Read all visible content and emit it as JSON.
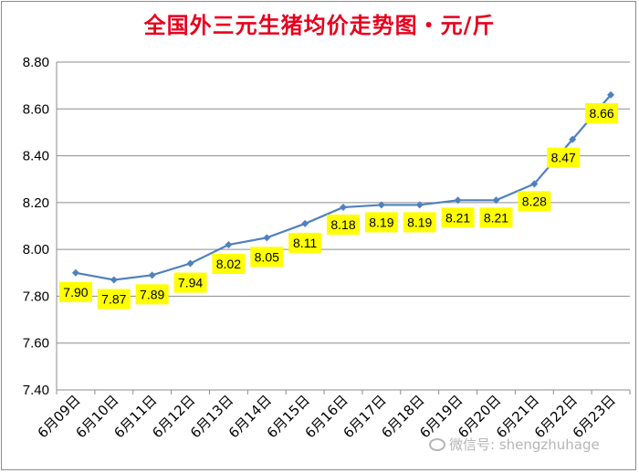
{
  "chart_data": {
    "type": "line",
    "title": "全国外三元生猪均价走势图・元/斤",
    "categories": [
      "6月09日",
      "6月10日",
      "6月11日",
      "6月12日",
      "6月13日",
      "6月14日",
      "6月15日",
      "6月16日",
      "6月17日",
      "6月18日",
      "6月19日",
      "6月20日",
      "6月21日",
      "6月22日",
      "6月23日"
    ],
    "values": [
      7.9,
      7.87,
      7.89,
      7.94,
      8.02,
      8.05,
      8.11,
      8.18,
      8.19,
      8.19,
      8.21,
      8.21,
      8.28,
      8.47,
      8.66
    ],
    "data_labels": [
      "7.90",
      "7.87",
      "7.89",
      "7.94",
      "8.02",
      "8.05",
      "8.11",
      "8.18",
      "8.19",
      "8.19",
      "8.21",
      "8.21",
      "8.28",
      "8.47",
      "8.66"
    ],
    "ylim": [
      7.4,
      8.8
    ],
    "yticks": [
      "7.40",
      "7.60",
      "7.80",
      "8.00",
      "8.20",
      "8.40",
      "8.60",
      "8.80"
    ],
    "grid": true,
    "line_color": "#4f81bd",
    "label_bg_color": "#ffff00",
    "title_color": "#e8001c"
  },
  "watermark": "微信号: shengzhuhage"
}
